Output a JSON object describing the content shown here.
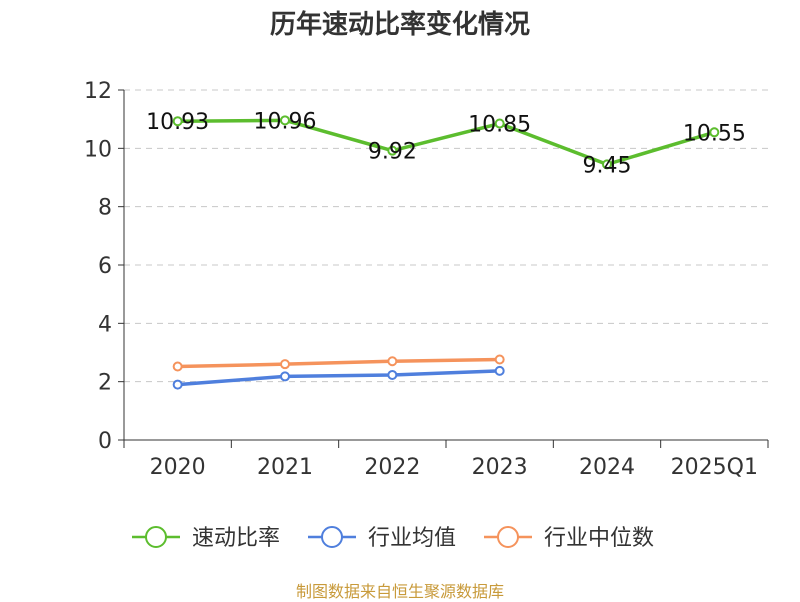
{
  "chart_data": {
    "type": "line",
    "title": "历年速动比率变化情况",
    "categories": [
      "2020",
      "2021",
      "2022",
      "2023",
      "2024",
      "2025Q1"
    ],
    "ylim": [
      0,
      12
    ],
    "yticks": [
      0,
      2,
      4,
      6,
      8,
      10,
      12
    ],
    "grid": true,
    "legend_position": "bottom",
    "series": [
      {
        "name": "速动比率",
        "color": "#5cbd2e",
        "values": [
          10.93,
          10.96,
          9.92,
          10.85,
          9.45,
          10.55
        ],
        "labels": [
          "10.93",
          "10.96",
          "9.92",
          "10.85",
          "9.45",
          "10.55"
        ]
      },
      {
        "name": "行业均值",
        "color": "#4f7fdd",
        "values": [
          1.9,
          2.18,
          2.23,
          2.37,
          null,
          null
        ]
      },
      {
        "name": "行业中位数",
        "color": "#f5935c",
        "values": [
          2.52,
          2.6,
          2.7,
          2.76,
          null,
          null
        ]
      }
    ]
  },
  "footer": "制图数据来自恒生聚源数据库"
}
